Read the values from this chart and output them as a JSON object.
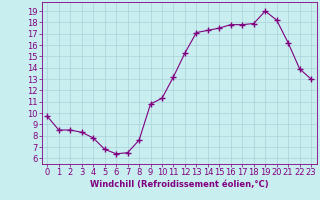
{
  "x": [
    0,
    1,
    2,
    3,
    4,
    5,
    6,
    7,
    8,
    9,
    10,
    11,
    12,
    13,
    14,
    15,
    16,
    17,
    18,
    19,
    20,
    21,
    22,
    23
  ],
  "y": [
    9.7,
    8.5,
    8.5,
    8.3,
    7.8,
    6.8,
    6.4,
    6.5,
    7.6,
    10.8,
    11.3,
    13.2,
    15.3,
    17.1,
    17.3,
    17.5,
    17.8,
    17.8,
    17.9,
    19.0,
    18.2,
    16.2,
    13.9,
    13.0
  ],
  "line_color": "#800080",
  "marker": "+",
  "marker_size": 4,
  "marker_linewidth": 1.0,
  "background_color": "#c8eef0",
  "grid_color": "#aad4d8",
  "xlabel": "Windchill (Refroidissement éolien,°C)",
  "xlabel_color": "#800080",
  "xlabel_fontsize": 6.0,
  "tick_color": "#800080",
  "tick_fontsize": 6.0,
  "ylim": [
    5.5,
    19.8
  ],
  "xlim": [
    -0.5,
    23.5
  ],
  "yticks": [
    6,
    7,
    8,
    9,
    10,
    11,
    12,
    13,
    14,
    15,
    16,
    17,
    18,
    19
  ],
  "xticks": [
    0,
    1,
    2,
    3,
    4,
    5,
    6,
    7,
    8,
    9,
    10,
    11,
    12,
    13,
    14,
    15,
    16,
    17,
    18,
    19,
    20,
    21,
    22,
    23
  ]
}
